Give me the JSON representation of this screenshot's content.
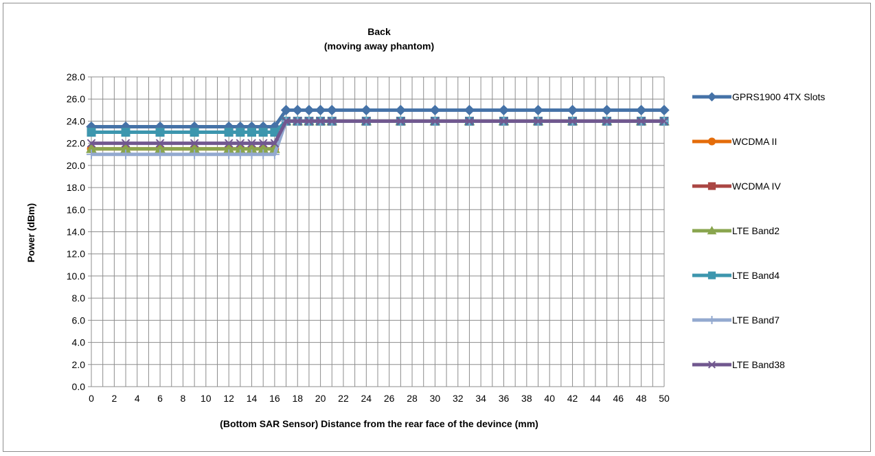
{
  "chart_data": {
    "type": "line",
    "title": "Back",
    "subtitle": "(moving away phantom)",
    "xlabel": "(Bottom SAR Sensor) Distance from the rear face of the devince (mm)",
    "ylabel": "Power (dBm)",
    "xlim": [
      0,
      50
    ],
    "ylim": [
      0,
      28
    ],
    "x_ticks": [
      0,
      2,
      4,
      6,
      8,
      10,
      12,
      14,
      16,
      18,
      20,
      22,
      24,
      26,
      28,
      30,
      32,
      34,
      36,
      38,
      40,
      42,
      44,
      46,
      48,
      50
    ],
    "y_ticks": [
      "0.0",
      "2.0",
      "4.0",
      "6.0",
      "8.0",
      "10.0",
      "12.0",
      "14.0",
      "16.0",
      "18.0",
      "20.0",
      "22.0",
      "24.0",
      "26.0",
      "28.0"
    ],
    "grid": true,
    "legend_position": "right",
    "x": [
      0,
      3,
      6,
      9,
      12,
      13,
      14,
      15,
      16,
      17,
      18,
      19,
      20,
      21,
      24,
      27,
      30,
      33,
      36,
      39,
      42,
      45,
      48,
      50
    ],
    "series": [
      {
        "name": "GPRS1900 4TX Slots",
        "color": "#4572a7",
        "marker": "diamond",
        "values": [
          23.5,
          23.5,
          23.5,
          23.5,
          23.5,
          23.5,
          23.5,
          23.5,
          23.5,
          25,
          25,
          25,
          25,
          25,
          25,
          25,
          25,
          25,
          25,
          25,
          25,
          25,
          25,
          25
        ]
      },
      {
        "name": "WCDMA II",
        "color": "#e46c0a",
        "marker": "circle",
        "values": [
          21.5,
          21.5,
          21.5,
          21.5,
          21.5,
          21.5,
          21.5,
          21.5,
          21.5,
          24,
          24,
          24,
          24,
          24,
          24,
          24,
          24,
          24,
          24,
          24,
          24,
          24,
          24,
          24
        ]
      },
      {
        "name": "WCDMA IV",
        "color": "#aa4643",
        "marker": "square",
        "values": [
          23,
          23,
          23,
          23,
          23,
          23,
          23,
          23,
          23,
          24,
          24,
          24,
          24,
          24,
          24,
          24,
          24,
          24,
          24,
          24,
          24,
          24,
          24,
          24
        ]
      },
      {
        "name": "LTE Band2",
        "color": "#89a54e",
        "marker": "triangle",
        "values": [
          21.5,
          21.5,
          21.5,
          21.5,
          21.5,
          21.5,
          21.5,
          21.5,
          21.5,
          24,
          24,
          24,
          24,
          24,
          24,
          24,
          24,
          24,
          24,
          24,
          24,
          24,
          24,
          24
        ]
      },
      {
        "name": "LTE Band4",
        "color": "#3d96ae",
        "marker": "square",
        "values": [
          23,
          23,
          23,
          23,
          23,
          23,
          23,
          23,
          23,
          24,
          24,
          24,
          24,
          24,
          24,
          24,
          24,
          24,
          24,
          24,
          24,
          24,
          24,
          24
        ]
      },
      {
        "name": "LTE Band7",
        "color": "#93a9cf",
        "marker": "plus",
        "values": [
          21,
          21,
          21,
          21,
          21,
          21,
          21,
          21,
          21,
          24,
          24,
          24,
          24,
          24,
          24,
          24,
          24,
          24,
          24,
          24,
          24,
          24,
          24,
          24
        ]
      },
      {
        "name": "LTE Band38",
        "color": "#71588f",
        "marker": "x",
        "values": [
          22,
          22,
          22,
          22,
          22,
          22,
          22,
          22,
          22,
          24,
          24,
          24,
          24,
          24,
          24,
          24,
          24,
          24,
          24,
          24,
          24,
          24,
          24,
          24
        ]
      }
    ]
  }
}
